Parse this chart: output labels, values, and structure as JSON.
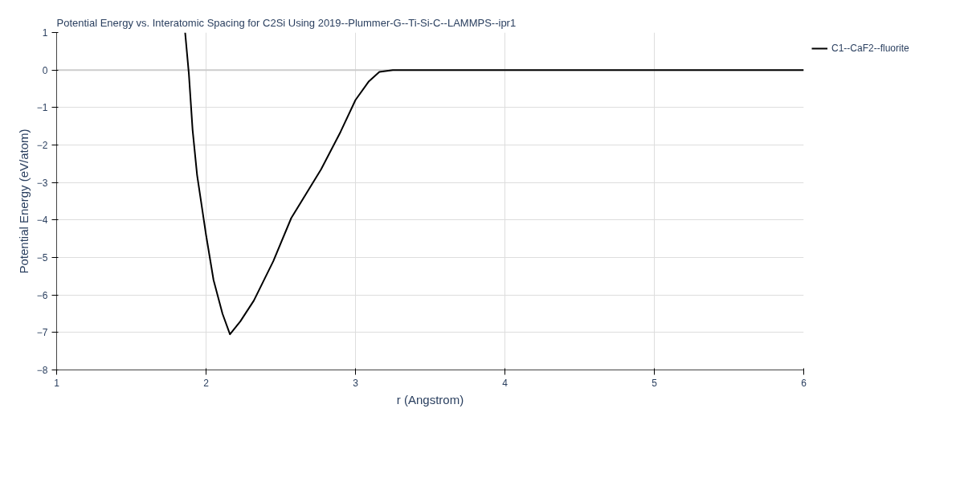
{
  "chart_data": {
    "type": "line",
    "title": "Potential Energy vs. Interatomic Spacing for C2Si Using 2019--Plummer-G--Ti-Si-C--LAMMPS--ipr1",
    "xlabel": "r (Angstrom)",
    "ylabel": "Potential Energy (eV/atom)",
    "series": [
      {
        "name": "C1--CaF2--fluorite",
        "color": "#000000",
        "x": [
          1.86,
          1.885,
          1.91,
          1.94,
          1.97,
          2.0,
          2.05,
          2.11,
          2.16,
          2.23,
          2.32,
          2.45,
          2.57,
          2.77,
          2.9,
          3.0,
          3.09,
          3.16,
          3.25,
          4.0,
          5.0,
          6.0
        ],
        "values": [
          1.0,
          -0.1,
          -1.6,
          -2.8,
          -3.6,
          -4.4,
          -5.6,
          -6.5,
          -7.05,
          -6.7,
          -6.15,
          -5.1,
          -3.95,
          -2.65,
          -1.65,
          -0.8,
          -0.3,
          -0.05,
          0,
          0,
          0,
          0
        ]
      }
    ],
    "xlim": [
      1,
      6
    ],
    "xticks": [
      1,
      2,
      3,
      4,
      5,
      6
    ],
    "ylim": [
      -8,
      1
    ],
    "yticks": [
      -8,
      -7,
      -6,
      -5,
      -4,
      -3,
      -2,
      -1,
      0,
      1
    ],
    "grid": true,
    "legend": "top right",
    "line_style": "solid",
    "marker": "none"
  }
}
